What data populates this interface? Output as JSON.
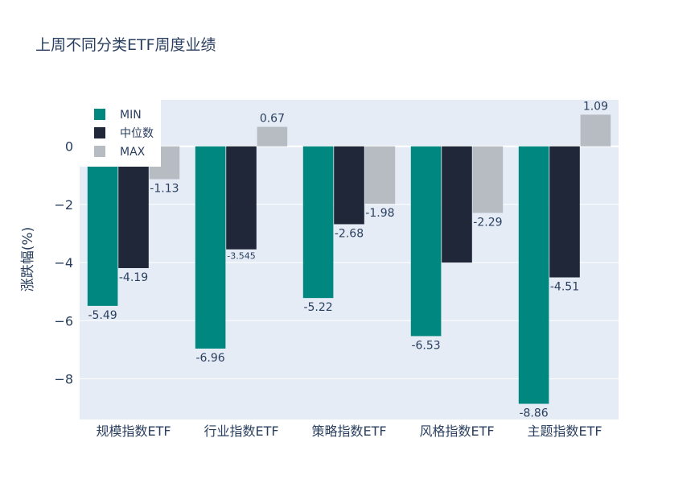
{
  "chart_data": {
    "type": "bar",
    "title": "上周不同分类ETF周度业绩",
    "xlabel": "",
    "ylabel": "涨跌幅(%)",
    "ylim": [
      -9.4,
      1.6
    ],
    "yticks": [
      0,
      -2,
      -4,
      -6,
      -8
    ],
    "ytick_labels": [
      "0",
      "−2",
      "−4",
      "−6",
      "−8"
    ],
    "categories": [
      "规模指数ETF",
      "行业指数ETF",
      "策略指数ETF",
      "风格指数ETF",
      "主题指数ETF"
    ],
    "series": [
      {
        "name": "MIN",
        "color": "#00877f",
        "values": [
          -5.49,
          -6.96,
          -5.22,
          -6.53,
          -8.86
        ],
        "labels": [
          "-5.49",
          "-6.96",
          "-5.22",
          "-6.53",
          "-8.86"
        ]
      },
      {
        "name": "中位数",
        "color": "#1f2739",
        "values": [
          -4.19,
          -3.545,
          -2.68,
          -4.0,
          -4.51
        ],
        "labels": [
          "-4.19",
          "-3.545",
          "-2.68",
          "",
          "-4.51"
        ]
      },
      {
        "name": "MAX",
        "color": "#b7bcc3",
        "values": [
          -1.13,
          0.67,
          -1.98,
          -2.29,
          1.09
        ],
        "labels": [
          "-1.13",
          "0.67",
          "-1.98",
          "-2.29",
          "1.09"
        ]
      }
    ],
    "legend_position": "top-left",
    "grid": true,
    "colors": {
      "plot_bg": "#e5ecf6",
      "grid": "#ffffff",
      "text": "#2a3f5f"
    }
  }
}
